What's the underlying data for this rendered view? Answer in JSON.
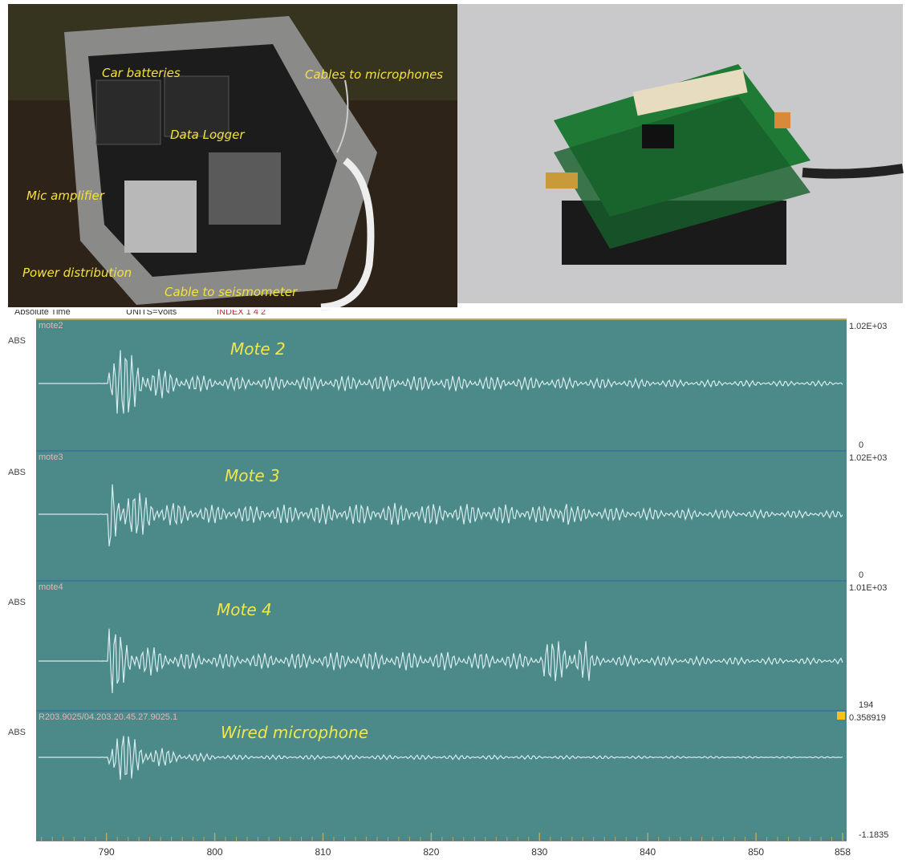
{
  "photos": {
    "field_box_labels": [
      {
        "text": "Car batteries"
      },
      {
        "text": "Cables to microphones"
      },
      {
        "text": "Data Logger"
      },
      {
        "text": "Mic amplifier"
      },
      {
        "text": "Power distribution"
      },
      {
        "text": "Cable to seismometer"
      }
    ]
  },
  "waveform": {
    "header": [
      "Absolute Time",
      "UNITS=Volts",
      "INDEX 1 4 2"
    ],
    "channels": [
      {
        "side": "ABS",
        "station": "mote2",
        "name": "Mote 2",
        "top": "1.02E+03",
        "bottom": "0"
      },
      {
        "side": "ABS",
        "station": "mote3",
        "name": "Mote 3",
        "top": "1.02E+03",
        "bottom": "0"
      },
      {
        "side": "ABS",
        "station": "mote4",
        "name": "Mote 4",
        "top": "1.01E+03",
        "bottom": "194"
      },
      {
        "side": "ABS",
        "station": "R203.9025/04.203.20.45.27.9025.1",
        "name": "Wired microphone",
        "top": "0.358919",
        "bottom": "-1.1835"
      }
    ],
    "xlim": [
      783.5,
      858
    ],
    "xticks": [
      790,
      800,
      810,
      820,
      830,
      840,
      850,
      858
    ]
  }
}
